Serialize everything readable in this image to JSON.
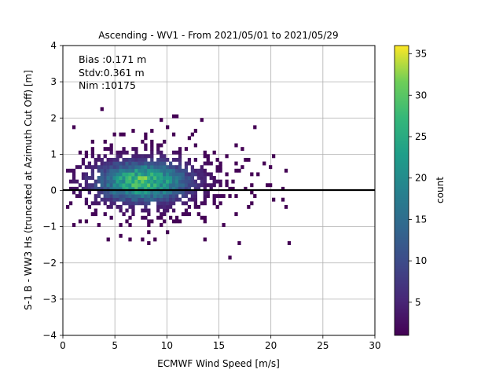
{
  "chart_data": {
    "type": "heatmap",
    "title": "Ascending - WV1 - From 2021/05/01 to 2021/05/29",
    "xlabel": "ECMWF Wind Speed [m/s]",
    "ylabel": "S-1 B - WW3 Hs (truncated at Azimuth Cut Off) [m]",
    "xlim": [
      0,
      30
    ],
    "ylim": [
      -4,
      4
    ],
    "xticks": [
      "0",
      "5",
      "10",
      "15",
      "20",
      "25",
      "30"
    ],
    "yticks": [
      "−4",
      "−3",
      "−2",
      "−1",
      "0",
      "1",
      "2",
      "3",
      "4"
    ],
    "grid": true,
    "reference_line_y": 0,
    "stats": [
      "Bias :0.171 m",
      "Stdv:0.361 m",
      "Nim :10175"
    ],
    "colorbar": {
      "label": "count",
      "range": [
        1,
        36
      ],
      "ticks": [
        "5",
        "10",
        "15",
        "20",
        "25",
        "30",
        "35"
      ],
      "colormap": "viridis"
    },
    "distribution": {
      "center_x": 7.5,
      "center_y": 0.2,
      "peak_count": 35,
      "total_points": 10175
    }
  }
}
